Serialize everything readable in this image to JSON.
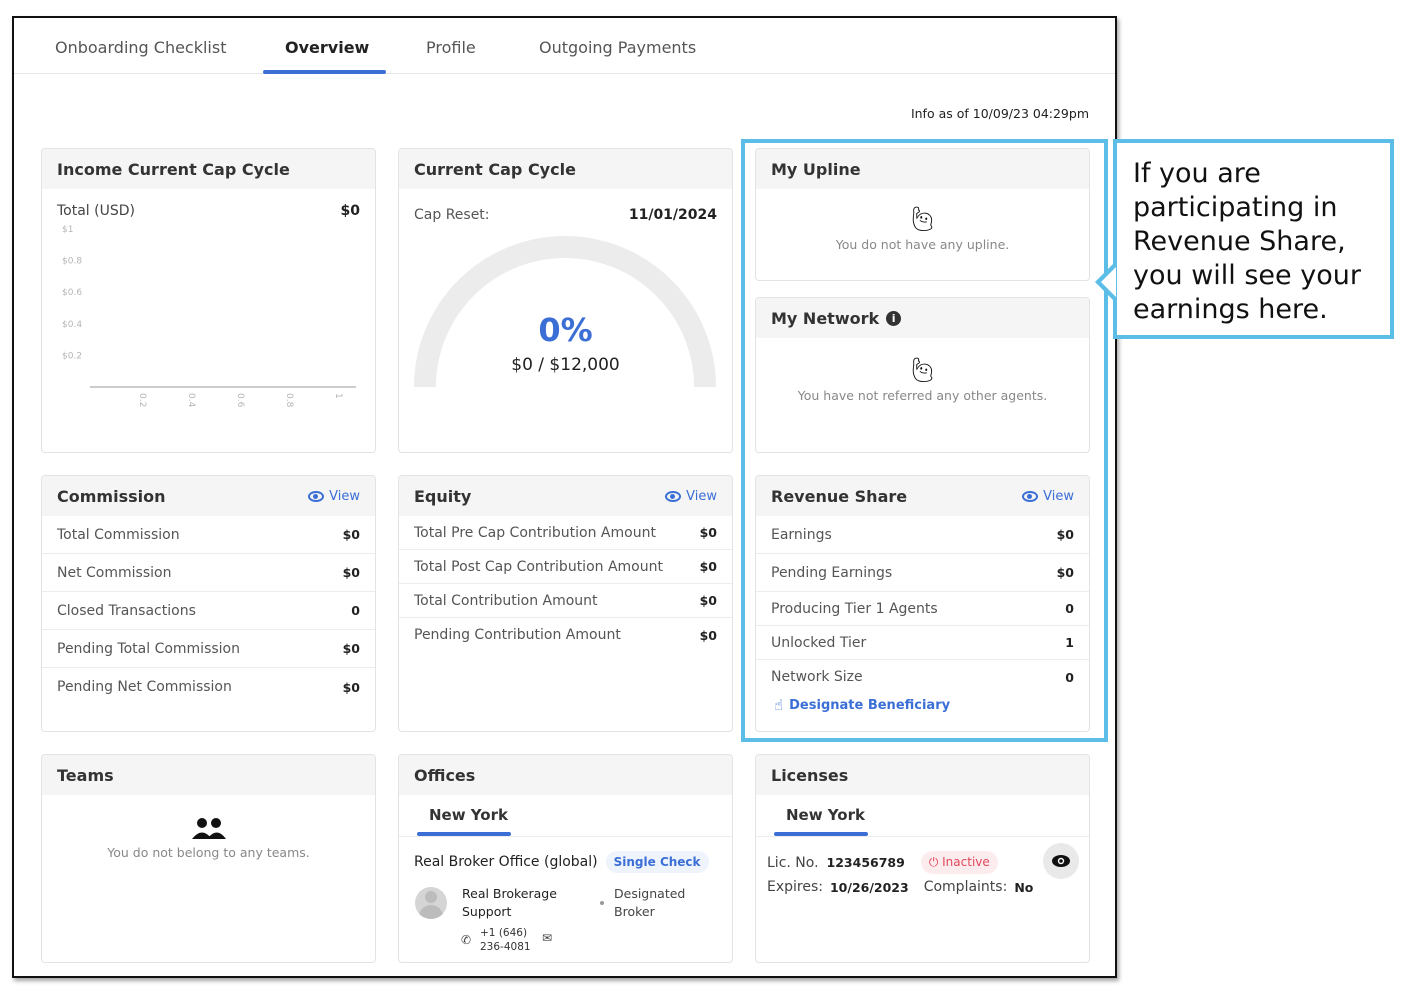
{
  "tabs": [
    {
      "label": "Onboarding Checklist"
    },
    {
      "label": "Overview"
    },
    {
      "label": "Profile"
    },
    {
      "label": "Outgoing Payments"
    }
  ],
  "info_as_of": "Info as of 10/09/23 04:29pm",
  "income": {
    "title": "Income Current Cap Cycle",
    "total_label": "Total (USD)",
    "total_value": "$0",
    "chart_data": {
      "type": "bar",
      "y_ticks": [
        "$1",
        "$0.8",
        "$0.6",
        "$0.4",
        "$0.2"
      ],
      "x_ticks": [
        "0.2",
        "0.4",
        "0.6",
        "0.8",
        "1"
      ],
      "ylim": [
        0,
        1
      ],
      "xlim": [
        0,
        1
      ],
      "values": []
    }
  },
  "cap_cycle": {
    "title": "Current Cap Cycle",
    "reset_label": "Cap Reset:",
    "reset_date": "11/01/2024",
    "percent": "0%",
    "amount": "$0 / $12,000",
    "progress": 0
  },
  "upline": {
    "title": "My Upline",
    "empty": "You do not have any upline."
  },
  "network": {
    "title": "My Network",
    "empty": "You have not referred any other agents."
  },
  "commission": {
    "title": "Commission",
    "view": "View",
    "rows": [
      {
        "label": "Total Commission",
        "value": "$0"
      },
      {
        "label": "Net Commission",
        "value": "$0"
      },
      {
        "label": "Closed Transactions",
        "value": "0"
      },
      {
        "label": "Pending Total Commission",
        "value": "$0"
      },
      {
        "label": "Pending Net Commission",
        "value": "$0"
      }
    ]
  },
  "equity": {
    "title": "Equity",
    "view": "View",
    "rows": [
      {
        "label": "Total Pre Cap Contribution Amount",
        "value": "$0"
      },
      {
        "label": "Total Post Cap Contribution Amount",
        "value": "$0"
      },
      {
        "label": "Total Contribution Amount",
        "value": "$0"
      },
      {
        "label": "Pending Contribution Amount",
        "value": "$0"
      }
    ]
  },
  "revenue_share": {
    "title": "Revenue Share",
    "view": "View",
    "rows": [
      {
        "label": "Earnings",
        "value": "$0"
      },
      {
        "label": "Pending Earnings",
        "value": "$0"
      },
      {
        "label": "Producing Tier 1 Agents",
        "value": "0"
      },
      {
        "label": "Unlocked Tier",
        "value": "1"
      },
      {
        "label": "Network Size",
        "value": "0"
      }
    ],
    "beneficiary_link": "Designate Beneficiary"
  },
  "teams": {
    "title": "Teams",
    "empty": "You do not belong to any teams."
  },
  "offices": {
    "title": "Offices",
    "tab": "New York",
    "office_name": "Real Broker Office (global)",
    "chip": "Single Check",
    "contact_name": "Real Brokerage Support",
    "role": "Designated Broker",
    "phone": "+1 (646) 236-4081"
  },
  "licenses": {
    "title": "Licenses",
    "tab": "New York",
    "lic_label": "Lic. No.",
    "lic_no": "123456789",
    "status": "Inactive",
    "expires_label": "Expires:",
    "expires": "10/26/2023",
    "complaints_label": "Complaints:",
    "complaints": "No"
  },
  "callout": {
    "text": "If you are participating in Revenue Share, you will see your earnings here."
  },
  "colors": {
    "accent": "#3b6fd6",
    "highlight": "#5cbde6",
    "inactive": "#e0475b"
  }
}
